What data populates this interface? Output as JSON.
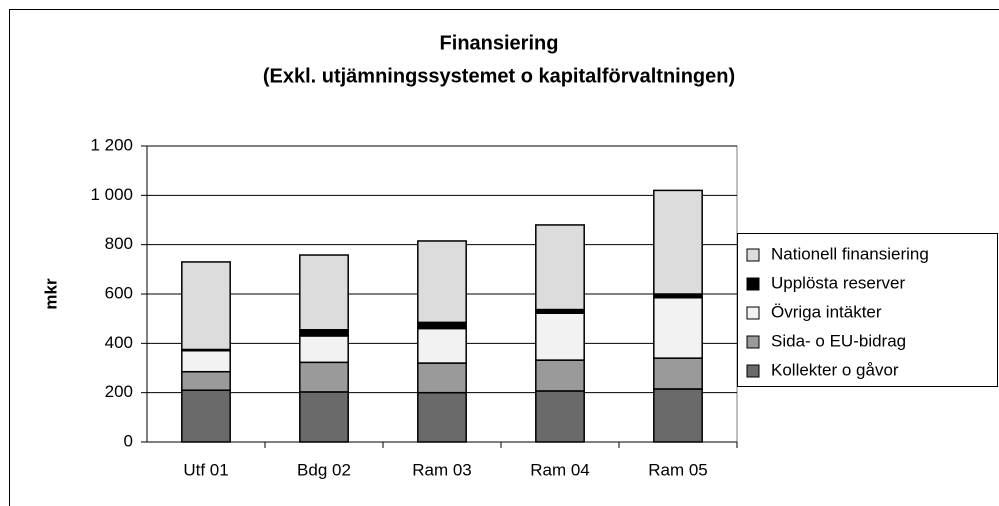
{
  "chart_data": {
    "type": "stacked_bar",
    "title": "Finansiering",
    "subtitle": "(Exkl. utjämningssystemet o kapitalförvaltningen)",
    "y_label": "mkr",
    "categories": [
      "Utf 01",
      "Bdg 02",
      "Ram 03",
      "Ram 04",
      "Ram 05"
    ],
    "series": [
      {
        "name": "Kollekter o gåvor",
        "color": "#6a6a6a",
        "values": [
          210,
          203,
          200,
          207,
          215
        ]
      },
      {
        "name": "Sida- o EU-bidrag",
        "color": "#9a9a9a",
        "values": [
          75,
          120,
          120,
          125,
          125
        ]
      },
      {
        "name": "Övriga intäkter",
        "color": "#f2f2f2",
        "values": [
          85,
          107,
          140,
          190,
          245
        ]
      },
      {
        "name": "Upplösta reserver",
        "color": "#000000",
        "values": [
          5,
          25,
          25,
          15,
          15
        ]
      },
      {
        "name": "Nationell finansiering",
        "color": "#dcdcdc",
        "values": [
          355,
          303,
          330,
          343,
          420
        ]
      }
    ],
    "ylim": [
      0,
      1200
    ],
    "yticks": [
      0,
      200,
      400,
      600,
      800,
      {
        "value": 1000,
        "label": "1 000"
      },
      {
        "value": 1200,
        "label": "1 200"
      }
    ],
    "grid": true,
    "legend": "right"
  }
}
